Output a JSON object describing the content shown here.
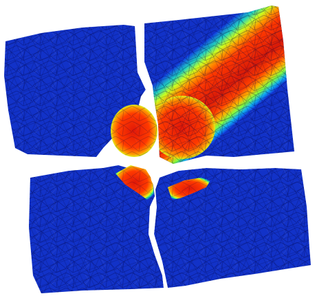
{
  "scene": {
    "type": "fractured-mesh-heatmap",
    "background_color": "#ffffff",
    "colormap": [
      "#0a1ab0",
      "#1030d8",
      "#00a0ff",
      "#20e0a0",
      "#c8ff20",
      "#ffd400",
      "#ff8c00",
      "#ff3000",
      "#d01808"
    ],
    "fragments": [
      {
        "id": "top-left",
        "dominant_value": "low"
      },
      {
        "id": "top-right",
        "dominant_value": "mixed",
        "hotspot": "diagonal-band"
      },
      {
        "id": "bottom-left",
        "dominant_value": "low",
        "hotspot": "crack-tip"
      },
      {
        "id": "bottom-right",
        "dominant_value": "low",
        "hotspot": "crack-tip"
      }
    ]
  }
}
